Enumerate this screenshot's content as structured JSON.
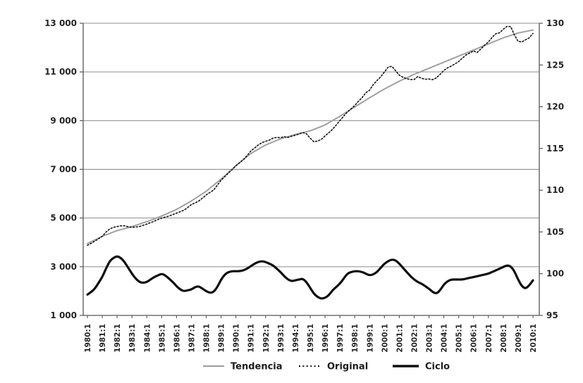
{
  "chart_data": {
    "type": "line",
    "title": "",
    "xlabel": "",
    "ylabel_left": "",
    "ylabel_right": "",
    "x_frequency": "quarterly",
    "n_points": 121,
    "x_start": "1980:1",
    "x_end": "2010:1",
    "x_tick_labels": [
      "1980:1",
      "1981:1",
      "1982:1",
      "1983:1",
      "1984:1",
      "1985:1",
      "1986:1",
      "1987:1",
      "1988:1",
      "1989:1",
      "1990:1",
      "1991:1",
      "1992:1",
      "1993:1",
      "1994:1",
      "1995:1",
      "1996:1",
      "1997:1",
      "1998:1",
      "1999:1",
      "2000:1",
      "2001:1",
      "2002:1",
      "2003:1",
      "2004:1",
      "2005:1",
      "2006:1",
      "2007:1",
      "2008:1",
      "2009:1",
      "2010:1"
    ],
    "left_axis": {
      "min": 1000,
      "max": 13000,
      "tick_step": 2000,
      "tick_values": [
        1000,
        3000,
        5000,
        7000,
        9000,
        11000,
        13000
      ],
      "tick_labels": [
        "1 000",
        "3 000",
        "5 000",
        "7 000",
        "9 000",
        "11 000",
        "13 000"
      ]
    },
    "right_axis": {
      "min": 95,
      "max": 130,
      "tick_step": 5,
      "tick_values": [
        95,
        100,
        105,
        110,
        115,
        120,
        125,
        130
      ],
      "tick_labels": [
        "95",
        "100",
        "105",
        "110",
        "115",
        "120",
        "125",
        "130"
      ]
    },
    "grid": "horizontal-only",
    "legend_position": "bottom-center",
    "series": [
      {
        "name": "Tendencia",
        "axis": "left",
        "style": "solid",
        "color": "#a0a0a0",
        "width": 2,
        "values": [
          3950,
          4025,
          4100,
          4175,
          4250,
          4308,
          4365,
          4423,
          4480,
          4523,
          4565,
          4608,
          4650,
          4700,
          4750,
          4800,
          4850,
          4908,
          4965,
          5023,
          5080,
          5148,
          5215,
          5283,
          5350,
          5438,
          5525,
          5613,
          5700,
          5800,
          5900,
          6000,
          6100,
          6225,
          6350,
          6475,
          6600,
          6738,
          6875,
          7013,
          7150,
          7275,
          7400,
          7525,
          7650,
          7738,
          7825,
          7913,
          8000,
          8063,
          8125,
          8188,
          8250,
          8295,
          8340,
          8385,
          8430,
          8468,
          8505,
          8543,
          8580,
          8640,
          8700,
          8760,
          8820,
          8910,
          9000,
          9090,
          9180,
          9275,
          9370,
          9465,
          9560,
          9655,
          9750,
          9845,
          9940,
          10030,
          10120,
          10210,
          10300,
          10380,
          10460,
          10540,
          10620,
          10690,
          10760,
          10830,
          10900,
          10963,
          11025,
          11088,
          11150,
          11213,
          11275,
          11338,
          11400,
          11463,
          11525,
          11588,
          11650,
          11713,
          11775,
          11838,
          11900,
          11963,
          12025,
          12088,
          12150,
          12213,
          12275,
          12338,
          12400,
          12450,
          12500,
          12550,
          12600,
          12630,
          12660,
          12690,
          12720
        ]
      },
      {
        "name": "Original",
        "axis": "left",
        "style": "dotted",
        "color": "#161616",
        "width": 1.6,
        "values": [
          3880,
          3960,
          4050,
          4150,
          4250,
          4420,
          4550,
          4620,
          4650,
          4680,
          4680,
          4640,
          4620,
          4630,
          4650,
          4700,
          4750,
          4810,
          4870,
          4940,
          5000,
          5040,
          5080,
          5140,
          5200,
          5260,
          5320,
          5430,
          5550,
          5620,
          5700,
          5820,
          5950,
          6050,
          6150,
          6350,
          6550,
          6700,
          6850,
          6990,
          7150,
          7270,
          7400,
          7560,
          7750,
          7870,
          8000,
          8090,
          8150,
          8200,
          8280,
          8310,
          8300,
          8340,
          8310,
          8360,
          8400,
          8450,
          8510,
          8460,
          8280,
          8130,
          8160,
          8230,
          8370,
          8500,
          8640,
          8820,
          9000,
          9180,
          9350,
          9480,
          9620,
          9800,
          9950,
          10150,
          10250,
          10480,
          10650,
          10800,
          11000,
          11200,
          11230,
          11050,
          10870,
          10780,
          10720,
          10690,
          10690,
          10810,
          10740,
          10700,
          10710,
          10680,
          10760,
          10900,
          11060,
          11170,
          11240,
          11330,
          11430,
          11570,
          11700,
          11780,
          11860,
          11800,
          11950,
          12100,
          12230,
          12420,
          12570,
          12610,
          12750,
          12870,
          12860,
          12520,
          12260,
          12230,
          12320,
          12400,
          12580
        ]
      },
      {
        "name": "Ciclo",
        "axis": "right",
        "style": "solid",
        "color": "#0e0e0e",
        "width": 3.2,
        "values": [
          97.5,
          97.8,
          98.2,
          98.9,
          99.6,
          100.6,
          101.5,
          101.9,
          102.1,
          101.9,
          101.4,
          100.7,
          100.0,
          99.4,
          99.0,
          98.9,
          99.0,
          99.3,
          99.6,
          99.8,
          100.0,
          99.8,
          99.4,
          99.0,
          98.5,
          98.1,
          97.9,
          98.0,
          98.1,
          98.4,
          98.5,
          98.2,
          97.9,
          97.7,
          97.8,
          98.4,
          99.3,
          99.9,
          100.2,
          100.3,
          100.3,
          100.3,
          100.4,
          100.6,
          100.9,
          101.2,
          101.4,
          101.5,
          101.4,
          101.2,
          101.0,
          100.6,
          100.2,
          99.7,
          99.3,
          99.1,
          99.2,
          99.3,
          99.4,
          99.0,
          98.3,
          97.6,
          97.2,
          97.0,
          97.1,
          97.4,
          98.0,
          98.4,
          98.8,
          99.4,
          100.0,
          100.2,
          100.3,
          100.3,
          100.2,
          100.0,
          99.8,
          99.9,
          100.2,
          100.7,
          101.2,
          101.5,
          101.7,
          101.6,
          101.2,
          100.7,
          100.2,
          99.7,
          99.3,
          99.0,
          98.8,
          98.5,
          98.2,
          97.8,
          97.6,
          98.0,
          98.7,
          99.1,
          99.3,
          99.3,
          99.3,
          99.3,
          99.4,
          99.5,
          99.6,
          99.7,
          99.8,
          99.9,
          100.0,
          100.2,
          100.4,
          100.6,
          100.8,
          101.0,
          100.9,
          100.3,
          99.3,
          98.5,
          98.2,
          98.6,
          99.2
        ]
      }
    ]
  },
  "legend": {
    "items": [
      {
        "label": "Tendencia"
      },
      {
        "label": "Original"
      },
      {
        "label": "Ciclo"
      }
    ]
  },
  "colors": {
    "background": "#ffffff",
    "grid": "#8c8c8c",
    "frame": "#565656",
    "tick_text": "#242424"
  }
}
